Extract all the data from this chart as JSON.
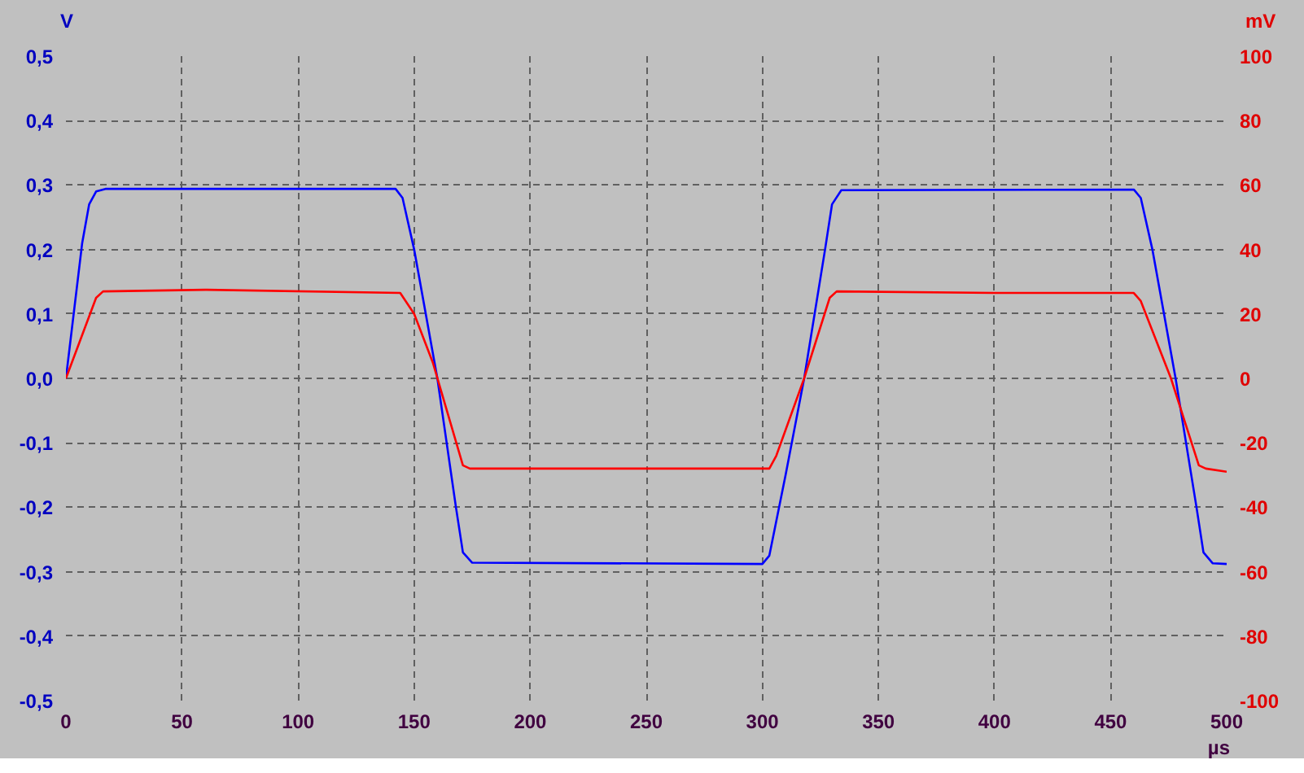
{
  "chart_data": {
    "type": "line",
    "xlabel": "µs",
    "ylabel": "V",
    "y2label": "mV",
    "xlim": [
      0,
      500
    ],
    "xticks": [
      0,
      50,
      100,
      150,
      200,
      250,
      300,
      350,
      400,
      450,
      500
    ],
    "ylim": [
      -0.5,
      0.5
    ],
    "yticks": [
      {
        "value": -0.5,
        "label": "-0,5"
      },
      {
        "value": -0.4,
        "label": "-0,4"
      },
      {
        "value": -0.3,
        "label": "-0,3"
      },
      {
        "value": -0.2,
        "label": "-0,2"
      },
      {
        "value": -0.1,
        "label": "-0,1"
      },
      {
        "value": 0,
        "label": "0,0"
      },
      {
        "value": 0.1,
        "label": "0,1"
      },
      {
        "value": 0.2,
        "label": "0,2"
      },
      {
        "value": 0.3,
        "label": "0,3"
      },
      {
        "value": 0.4,
        "label": "0,4"
      },
      {
        "value": 0.5,
        "label": "0,5"
      }
    ],
    "y2lim": [
      -100,
      100
    ],
    "y2ticks": [
      -100,
      -80,
      -60,
      -40,
      -20,
      0,
      20,
      40,
      60,
      80,
      100
    ],
    "grid": true,
    "series": [
      {
        "color": "#0000ff",
        "x": [
          0,
          7,
          10,
          13,
          17,
          142,
          145,
          150,
          160,
          168,
          171,
          175,
          300,
          303,
          310,
          318,
          327,
          330,
          334,
          460,
          463,
          468,
          478,
          487,
          490,
          494,
          500
        ],
        "values": [
          0,
          0.21,
          0.27,
          0.29,
          0.294,
          0.294,
          0.28,
          0.2,
          0.0,
          -0.2,
          -0.27,
          -0.286,
          -0.288,
          -0.275,
          -0.15,
          0,
          0.2,
          0.27,
          0.292,
          0.293,
          0.28,
          0.2,
          0,
          -0.2,
          -0.27,
          -0.287,
          -0.288
        ]
      },
      {
        "color": "#ff0000",
        "axis": "y2",
        "x": [
          0,
          13,
          16,
          60,
          144,
          150,
          158,
          171,
          174,
          303,
          306,
          318,
          329,
          332,
          400,
          460,
          463,
          476,
          488,
          491,
          500
        ],
        "values": [
          0,
          25,
          27,
          27.5,
          26.5,
          20,
          5,
          -27,
          -28,
          -28,
          -24,
          0,
          25,
          27,
          26.5,
          26.5,
          24,
          0,
          -27,
          -28,
          -29
        ]
      }
    ]
  }
}
